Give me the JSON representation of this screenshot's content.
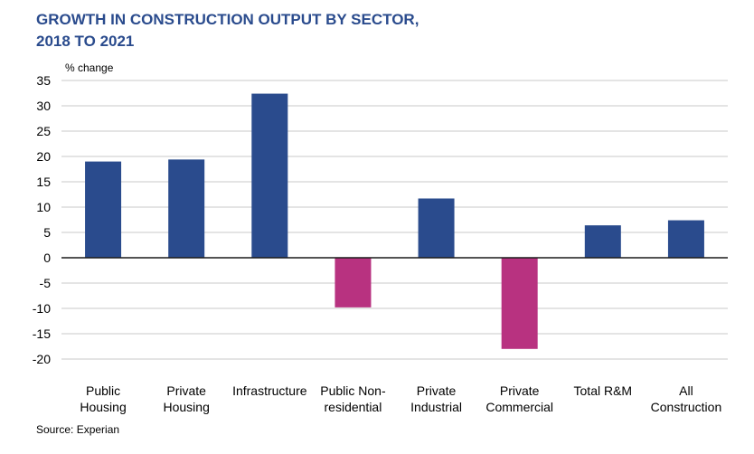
{
  "chart_data": {
    "type": "bar",
    "title": [
      "GROWTH IN CONSTRUCTION OUTPUT BY SECTOR,",
      "2018 TO 2021"
    ],
    "ylabel": "% change",
    "source": "Source: Experian",
    "ylim": [
      -20,
      35
    ],
    "yticks": [
      35,
      30,
      25,
      20,
      15,
      10,
      5,
      0,
      -5,
      -10,
      -15,
      -20
    ],
    "grid": true,
    "categories": [
      [
        "Public",
        "Housing"
      ],
      [
        "Private",
        "Housing"
      ],
      [
        "Infrastructure"
      ],
      [
        "Public Non-",
        "residential"
      ],
      [
        "Private",
        "Industrial"
      ],
      [
        "Private",
        "Commercial"
      ],
      [
        "Total R&M"
      ],
      [
        "All",
        "Construction"
      ]
    ],
    "values": [
      19.0,
      19.4,
      32.4,
      -9.8,
      11.7,
      -18.0,
      6.4,
      7.4
    ],
    "colors": {
      "positive": "#2a4b8d",
      "negative": "#b83280",
      "grid": "#c8c8c8"
    }
  }
}
